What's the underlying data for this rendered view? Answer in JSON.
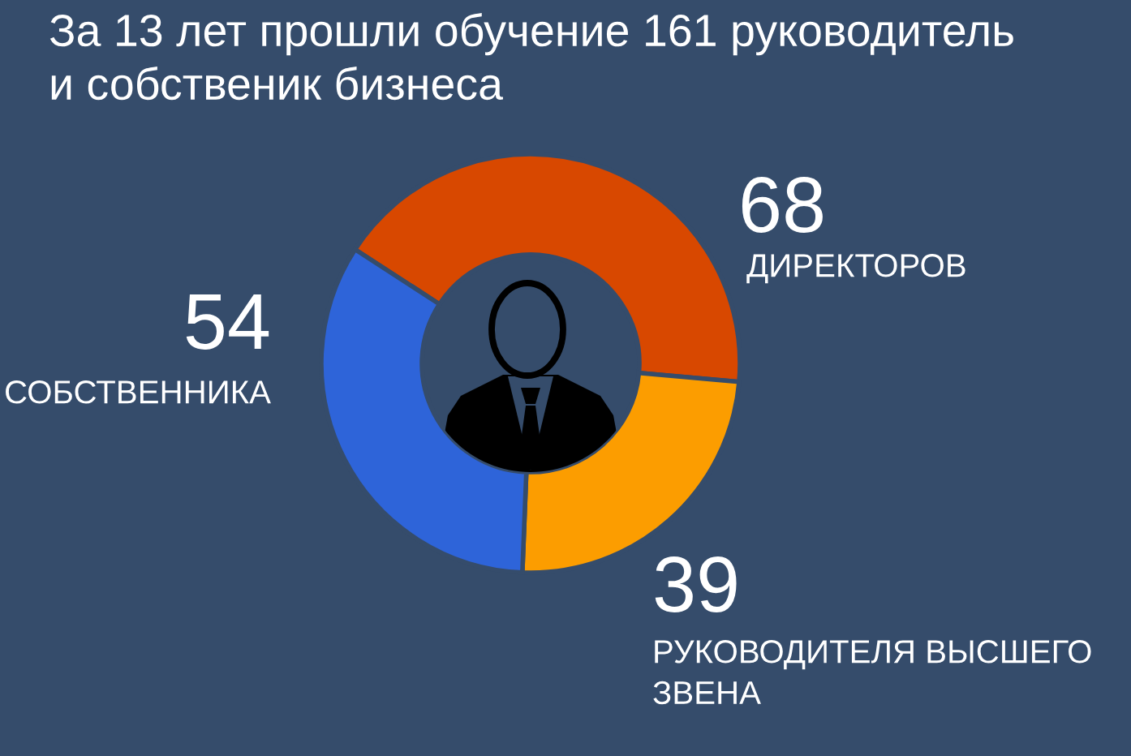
{
  "chart_data": {
    "type": "donut",
    "title": "За 13 лет прошли обучение 161 руководитель и собственик бизнеса",
    "categories": [
      "ДИРЕКТОРОВ",
      "РУКОВОДИТЕЛЯ ВЫСШЕГО ЗВЕНА",
      "СОБСТВЕННИКА"
    ],
    "values": [
      68,
      39,
      54
    ],
    "colors": [
      "#d84800",
      "#fc9d00",
      "#2e64d9"
    ],
    "data_labels": true
  }
}
